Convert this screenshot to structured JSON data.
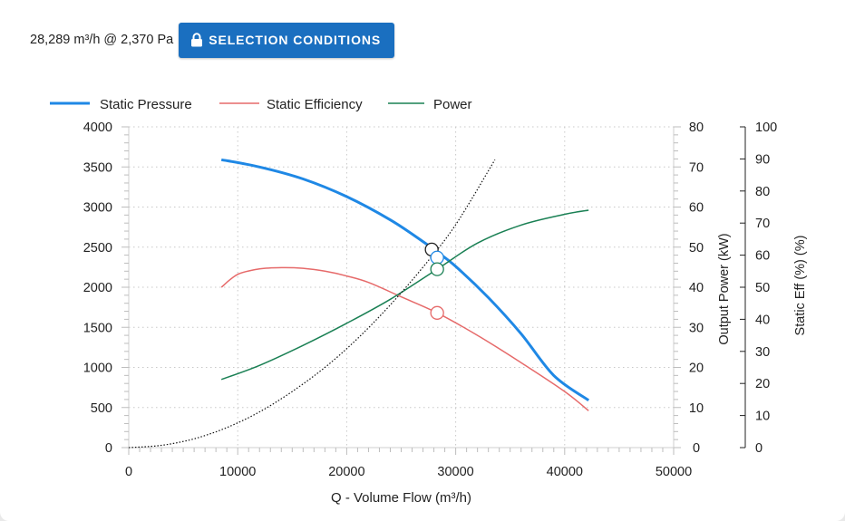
{
  "header": {
    "duty_point": "28,289 m³/h @ 2,370 Pa",
    "selection_button": "SELECTION CONDITIONS"
  },
  "legend": [
    {
      "label": "Static Pressure",
      "color": "#1f88e5"
    },
    {
      "label": "Static Efficiency",
      "color": "#e66a6a"
    },
    {
      "label": "Power",
      "color": "#1a8054"
    }
  ],
  "chart_data": {
    "type": "line",
    "xlabel": "Q - Volume Flow (m³/h)",
    "xlim": [
      0,
      50000
    ],
    "x_ticks": [
      "0",
      "10000",
      "20000",
      "30000",
      "40000",
      "50000"
    ],
    "axes": {
      "pressure": {
        "ylim": [
          0,
          4000
        ],
        "ticks": [
          "0",
          "500",
          "1000",
          "1500",
          "2000",
          "2500",
          "3000",
          "3500",
          "4000"
        ]
      },
      "power": {
        "label": "Output Power (kW)",
        "ylim": [
          0,
          80
        ],
        "ticks": [
          "0",
          "10",
          "20",
          "30",
          "40",
          "50",
          "60",
          "70",
          "80"
        ]
      },
      "efficiency": {
        "label": "Static Eff (%) (%)",
        "ylim": [
          0,
          100
        ],
        "ticks": [
          "0",
          "10",
          "20",
          "30",
          "40",
          "50",
          "60",
          "70",
          "80",
          "90",
          "100"
        ]
      }
    },
    "series": [
      {
        "name": "Static Pressure",
        "axis": "pressure",
        "color": "#1f88e5",
        "x": [
          8500,
          12000,
          16000,
          20000,
          24000,
          27000,
          28300,
          30000,
          33000,
          36000,
          39000,
          42200
        ],
        "y": [
          3590,
          3500,
          3350,
          3130,
          2840,
          2570,
          2440,
          2260,
          1870,
          1420,
          900,
          590
        ]
      },
      {
        "name": "Static Efficiency",
        "axis": "efficiency",
        "color": "#e66a6a",
        "x": [
          8500,
          10000,
          12000,
          14000,
          16000,
          18000,
          20000,
          22000,
          25000,
          28300,
          32000,
          36000,
          40000,
          42200
        ],
        "y": [
          50,
          54,
          55.7,
          56.1,
          55.9,
          55,
          53.5,
          51.5,
          47,
          42,
          35,
          26.5,
          17.5,
          11.5
        ]
      },
      {
        "name": "Power",
        "axis": "power",
        "color": "#1a8054",
        "x": [
          8500,
          12000,
          16000,
          20000,
          24000,
          28300,
          32000,
          36000,
          40000,
          42200
        ],
        "y": [
          17,
          20.5,
          25.5,
          31,
          37,
          44.5,
          51,
          55.5,
          58.2,
          59.2
        ]
      },
      {
        "name": "",
        "axis": "pressure",
        "color": "#111111",
        "dashed": true,
        "x": [
          0,
          3000,
          6000,
          9000,
          12000,
          15000,
          18000,
          21000,
          24000,
          27000,
          30000,
          33600
        ],
        "y": [
          0,
          28,
          110,
          250,
          445,
          700,
          1000,
          1360,
          1780,
          2250,
          2780,
          3590
        ]
      }
    ],
    "markers": [
      {
        "axis": "pressure",
        "x": 27800,
        "y": 2470,
        "color": "#222222"
      },
      {
        "axis": "pressure",
        "x": 28300,
        "y": 2370,
        "color": "#1f88e5"
      },
      {
        "axis": "power",
        "x": 28300,
        "y": 44.5,
        "color": "#1a8054"
      },
      {
        "axis": "efficiency",
        "x": 28300,
        "y": 42,
        "color": "#e66a6a"
      }
    ],
    "grid": true
  }
}
